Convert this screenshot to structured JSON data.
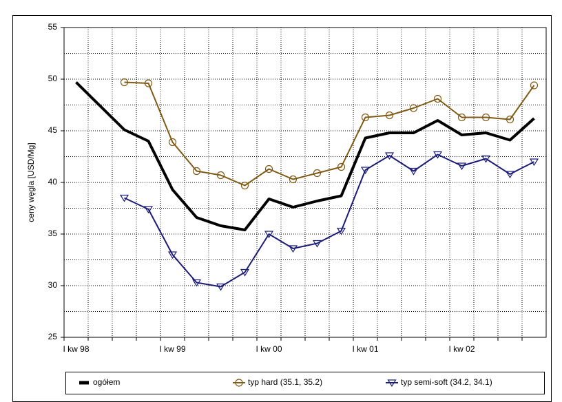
{
  "chart_data": {
    "type": "line",
    "y_label": "ceny węgla [USD/Mg]",
    "categories": [
      "I kw 98",
      null,
      null,
      null,
      "I kw 99",
      null,
      null,
      null,
      "I kw 00",
      null,
      null,
      null,
      "I kw 01",
      null,
      null,
      null,
      "I kw 02",
      null,
      null,
      null
    ],
    "ylim": [
      25,
      55
    ],
    "yticks": [
      25,
      30,
      35,
      40,
      45,
      50,
      55
    ],
    "y_minor_ticks": [
      27.5,
      32.5,
      37.5,
      42.5,
      47.5,
      52.5
    ],
    "grid": true,
    "legend": "bottom",
    "series": [
      {
        "name": "ogółem",
        "color": "#000000",
        "marker": "none",
        "values": [
          49.7,
          47.4,
          45.1,
          44.0,
          39.3,
          36.6,
          35.8,
          35.4,
          38.4,
          37.6,
          38.2,
          38.7,
          44.3,
          44.8,
          44.8,
          46.0,
          44.6,
          44.8,
          44.1,
          46.2
        ]
      },
      {
        "name": "typ hard (35.1, 35.2)",
        "color": "#7f5a14",
        "marker": "circle",
        "values": [
          null,
          null,
          49.7,
          49.6,
          43.9,
          41.1,
          40.7,
          39.7,
          41.3,
          40.3,
          40.9,
          41.5,
          46.3,
          46.5,
          47.2,
          48.1,
          46.3,
          46.3,
          46.1,
          49.4
        ]
      },
      {
        "name": "typ semi-soft (34.2, 34.1)",
        "color": "#1c1c78",
        "marker": "triangle-down",
        "values": [
          null,
          null,
          38.5,
          37.4,
          33.0,
          30.3,
          29.9,
          31.3,
          35.0,
          33.6,
          34.1,
          35.3,
          41.2,
          42.6,
          41.1,
          42.7,
          41.6,
          42.3,
          40.8,
          42.0
        ]
      }
    ]
  }
}
